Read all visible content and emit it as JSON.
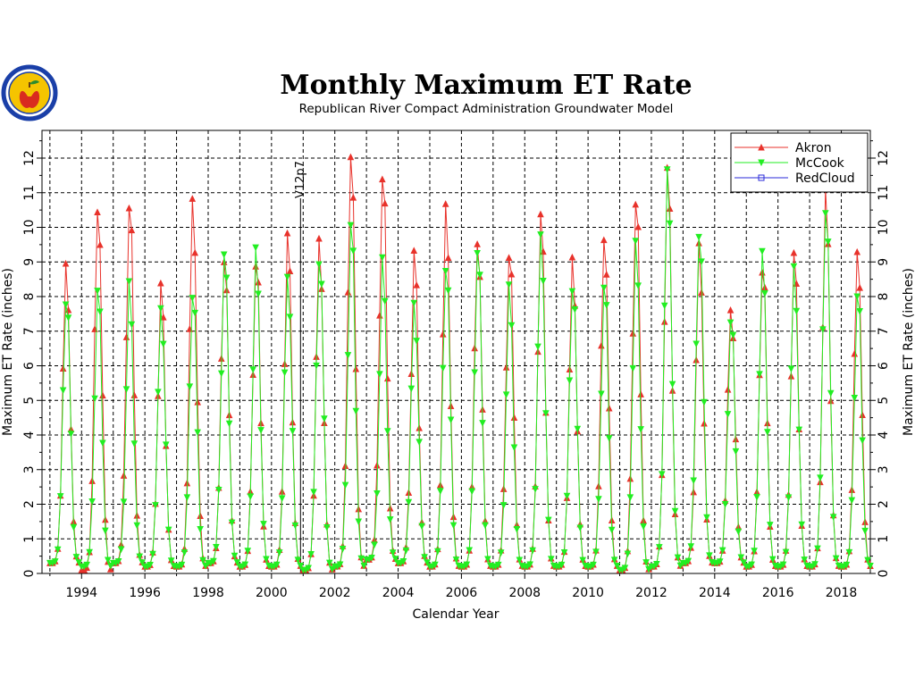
{
  "chart_data": {
    "type": "line",
    "title": "Monthly Maximum ET Rate",
    "subtitle": "Republican River Compact Administration Groundwater Model",
    "xlabel": "Calendar Year",
    "ylabel": "Maximum ET Rate (inches)",
    "xlim": [
      "1992-10",
      "2018-12"
    ],
    "ylim": [
      0,
      12.8
    ],
    "x_ticks": [
      "1994",
      "1996",
      "1998",
      "2000",
      "2002",
      "2004",
      "2006",
      "2008",
      "2010",
      "2012",
      "2014",
      "2016",
      "2018"
    ],
    "y_ticks": [
      "0",
      "1",
      "2",
      "3",
      "4",
      "5",
      "6",
      "7",
      "8",
      "9",
      "10",
      "11",
      "12"
    ],
    "grid": true,
    "legend": "top-right",
    "annotations": [
      {
        "text": "V12p7",
        "x": "2000-12"
      }
    ],
    "series": [
      {
        "name": "Akron",
        "color": "#e8322b",
        "marker": "triangle-up",
        "peaks": [
          9.0,
          11.0,
          11.0,
          8.3,
          10.9,
          9.5,
          9.3,
          9.8,
          9.7,
          12.6,
          11.9,
          9.3,
          10.7,
          10.0,
          9.6,
          10.4,
          9.1,
          10.1,
          11.2,
          11.8,
          9.5,
          8.0,
          9.2,
          9.3,
          11.1,
          9.7
        ],
        "troughs": [
          0.3,
          0.1,
          0.3,
          0.2,
          0.2,
          0.3,
          0.2,
          0.2,
          0.1,
          0.2,
          0.4,
          0.3,
          0.2,
          0.2,
          0.2,
          0.2,
          0.2,
          0.2,
          0.1,
          0.2,
          0.3,
          0.3,
          0.2,
          0.2,
          0.2,
          0.2
        ]
      },
      {
        "name": "McCook",
        "color": "#22ee22",
        "marker": "triangle-down",
        "peaks": [
          8.3,
          8.3,
          8.3,
          7.9,
          8.5,
          9.4,
          9.3,
          8.8,
          9.5,
          10.3,
          9.0,
          8.0,
          9.3,
          9.5,
          8.2,
          10.0,
          8.7,
          8.5,
          9.5,
          11.9,
          10.3,
          7.5,
          9.2,
          9.0,
          11.0,
          8.3
        ],
        "troughs": [
          0.3,
          0.2,
          0.3,
          0.2,
          0.2,
          0.3,
          0.2,
          0.2,
          0.1,
          0.2,
          0.4,
          0.3,
          0.2,
          0.2,
          0.2,
          0.2,
          0.2,
          0.2,
          0.1,
          0.2,
          0.3,
          0.3,
          0.2,
          0.2,
          0.2,
          0.2
        ]
      },
      {
        "name": "RedCloud",
        "color": "#2a2ad8",
        "marker": "square",
        "peaks": [],
        "troughs": []
      }
    ]
  }
}
